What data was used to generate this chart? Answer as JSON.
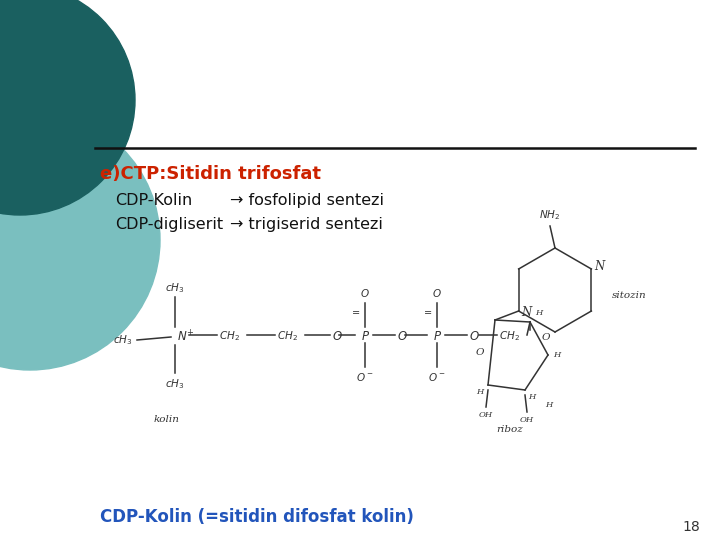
{
  "bg_color": "#ffffff",
  "circle_light_teal": "#7abfbf",
  "circle_dark_teal": "#1a6060",
  "title_red": "#cc2200",
  "title_text": "e)CTP:Sitidin trifosfat",
  "line1_left": "CDP-Kolin",
  "line1_right": "→ fosfolipid sentezi",
  "line2_left": "CDP-digliserit",
  "line2_right": "→ trigiserid sentezi",
  "bottom_blue": "CDP-Kolin (=sitidin difosfat kolin)",
  "page_number": "18",
  "ink_color": "#333333",
  "separator_color": "#111111"
}
